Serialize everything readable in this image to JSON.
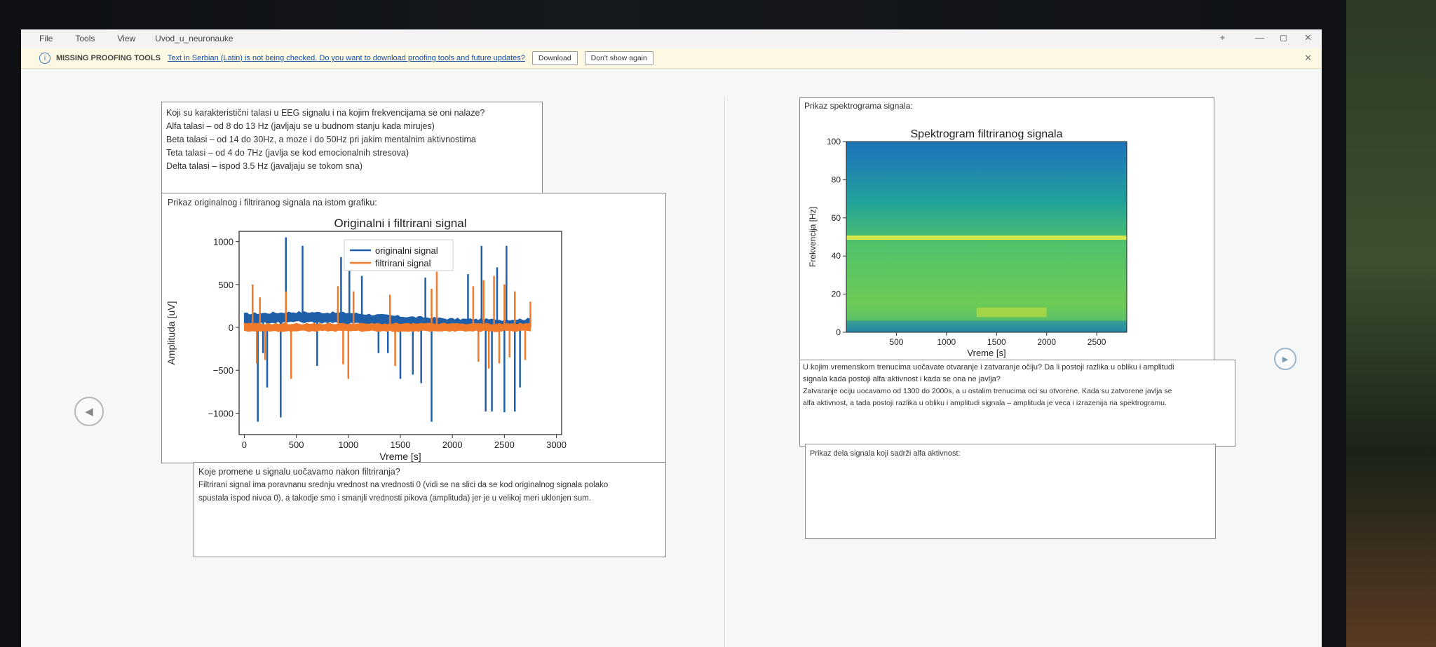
{
  "menubar": {
    "items": [
      "File",
      "Tools",
      "View"
    ],
    "title": "Uvod_u_neuronauke",
    "pin": "⌖",
    "minimize": "—",
    "maximize": "◻",
    "close": "✕"
  },
  "infobar": {
    "icon": "i",
    "title": "MISSING PROOFING TOOLS",
    "message": "Text in Serbian (Latin) is not being checked. Do you want to download proofing tools and future updates?",
    "download_label": "Download",
    "dismiss_label": "Don't show again",
    "close": "✕"
  },
  "left_col": {
    "question1": {
      "lines": [
        "Koji su karakteristični talasi u EEG signalu i na kojim frekvencijama se oni nalaze?",
        "Alfa talasi – od 8 do 13 Hz (javljaju se u budnom stanju kada mirujes)",
        "Beta talasi – od 14 do 30Hz, a moze i do 50Hz pri jakim mentalnim aktivnostima",
        "Teta talasi – od 4 do 7Hz (javlja se kod emocionalnih stresova)",
        "Delta talasi – ispod 3.5 Hz (javaljaju se tokom sna)"
      ]
    },
    "plot_caption": "Prikaz originalnog i filtriranog signala na istom grafiku:",
    "question2": {
      "lines": [
        "Koje promene u signalu uočavamo nakon filtriranja?",
        "Filtrirani signal ima poravnanu srednju vrednost na vrednosti 0 (vidi se na slici da se kod originalnog signala polako",
        "spustala ispod nivoa 0), a takodje smo i smanjli vrednosti pikova (amplituda) jer je u velikoj meri uklonjen sum."
      ]
    }
  },
  "right_col": {
    "spec_caption": "Prikaz spektrograma signala:",
    "question3": {
      "lines": [
        "U kojim vremenskom trenucima uočavate otvaranje i zatvaranje očiju? Da li postoji razlika u obliku i amplitudi",
        "signala kada postoji alfa aktivnost i kada se ona ne javlja?",
        "Zatvaranje ociju uocavamo od 1300 do 2000s, a u ostalim trenucima oci su otvorene. Kada su zatvorene javlja se",
        "alfa aktivnost, a tada postoji razlika u obliku i amplitudi signala – amplituda je veca i izrazenija na spektrogramu."
      ]
    },
    "alpha_caption": "Prikaz dela signala koji sadrži alfa aktivnost:"
  },
  "nav": {
    "prev_icon": "◀",
    "next_icon": "▶"
  },
  "chart_data": [
    {
      "type": "line",
      "title": "Originalni i filtrirani signal",
      "xlabel": "Vreme [s]",
      "ylabel": "Amplituda [uV]",
      "xlim": [
        -50,
        3050
      ],
      "ylim": [
        -1250,
        1120
      ],
      "xticks": [
        0,
        500,
        1000,
        1500,
        2000,
        2500,
        3000
      ],
      "yticks": [
        -1000,
        -500,
        0,
        500,
        1000
      ],
      "legend_position": "top-center",
      "series": [
        {
          "name": "originalni signal",
          "color": "#1f5fa8",
          "baseline": [
            [
              0,
              100
            ],
            [
              500,
              120
            ],
            [
              1000,
              110
            ],
            [
              1500,
              70
            ],
            [
              2000,
              40
            ],
            [
              2500,
              30
            ],
            [
              2750,
              40
            ]
          ],
          "noise_amplitude": 70,
          "spikes": [
            [
              80,
              380
            ],
            [
              130,
              -1100
            ],
            [
              400,
              1050
            ],
            [
              560,
              950
            ],
            [
              180,
              -300
            ],
            [
              220,
              -700
            ],
            [
              350,
              -1050
            ],
            [
              700,
              -450
            ],
            [
              930,
              820
            ],
            [
              1010,
              880
            ],
            [
              1130,
              600
            ],
            [
              1290,
              -300
            ],
            [
              1380,
              -300
            ],
            [
              1500,
              -600
            ],
            [
              1620,
              -550
            ],
            [
              1700,
              -650
            ],
            [
              1740,
              580
            ],
            [
              1800,
              -1100
            ],
            [
              2150,
              620
            ],
            [
              2280,
              950
            ],
            [
              2320,
              -980
            ],
            [
              2380,
              -980
            ],
            [
              2430,
              700
            ],
            [
              2500,
              -990
            ],
            [
              2520,
              950
            ],
            [
              2600,
              -980
            ],
            [
              2650,
              -700
            ]
          ]
        },
        {
          "name": "filtrirani signal",
          "color": "#f07a2a",
          "baseline": [
            [
              0,
              0
            ],
            [
              3000,
              0
            ]
          ],
          "noise_amplitude": 50,
          "spikes": [
            [
              80,
              500
            ],
            [
              120,
              -420
            ],
            [
              150,
              350
            ],
            [
              200,
              -380
            ],
            [
              400,
              420
            ],
            [
              450,
              -600
            ],
            [
              900,
              480
            ],
            [
              950,
              -430
            ],
            [
              1000,
              -600
            ],
            [
              1050,
              420
            ],
            [
              1400,
              380
            ],
            [
              1450,
              -450
            ],
            [
              1800,
              450
            ],
            [
              1850,
              650
            ],
            [
              2200,
              480
            ],
            [
              2250,
              -400
            ],
            [
              2300,
              550
            ],
            [
              2350,
              -480
            ],
            [
              2400,
              600
            ],
            [
              2450,
              -420
            ],
            [
              2500,
              500
            ],
            [
              2550,
              -350
            ],
            [
              2600,
              420
            ],
            [
              2700,
              -380
            ],
            [
              2750,
              300
            ]
          ]
        }
      ]
    },
    {
      "type": "heatmap",
      "title": "Spektrogram filtriranog signala",
      "xlabel": "Vreme [s]",
      "ylabel": "Frekvencija [Hz]",
      "xlim": [
        0,
        2800
      ],
      "ylim": [
        0,
        100
      ],
      "xticks": [
        500,
        1000,
        1500,
        2000,
        2500
      ],
      "yticks": [
        0,
        20,
        40,
        60,
        80,
        100
      ],
      "colormap": "viridis",
      "features": {
        "line_frequency_hz": 50,
        "alpha_band_hz": [
          8,
          13
        ],
        "alpha_time_s": [
          1300,
          2000
        ],
        "low_frequency_band_hz": [
          0,
          6
        ]
      }
    }
  ]
}
